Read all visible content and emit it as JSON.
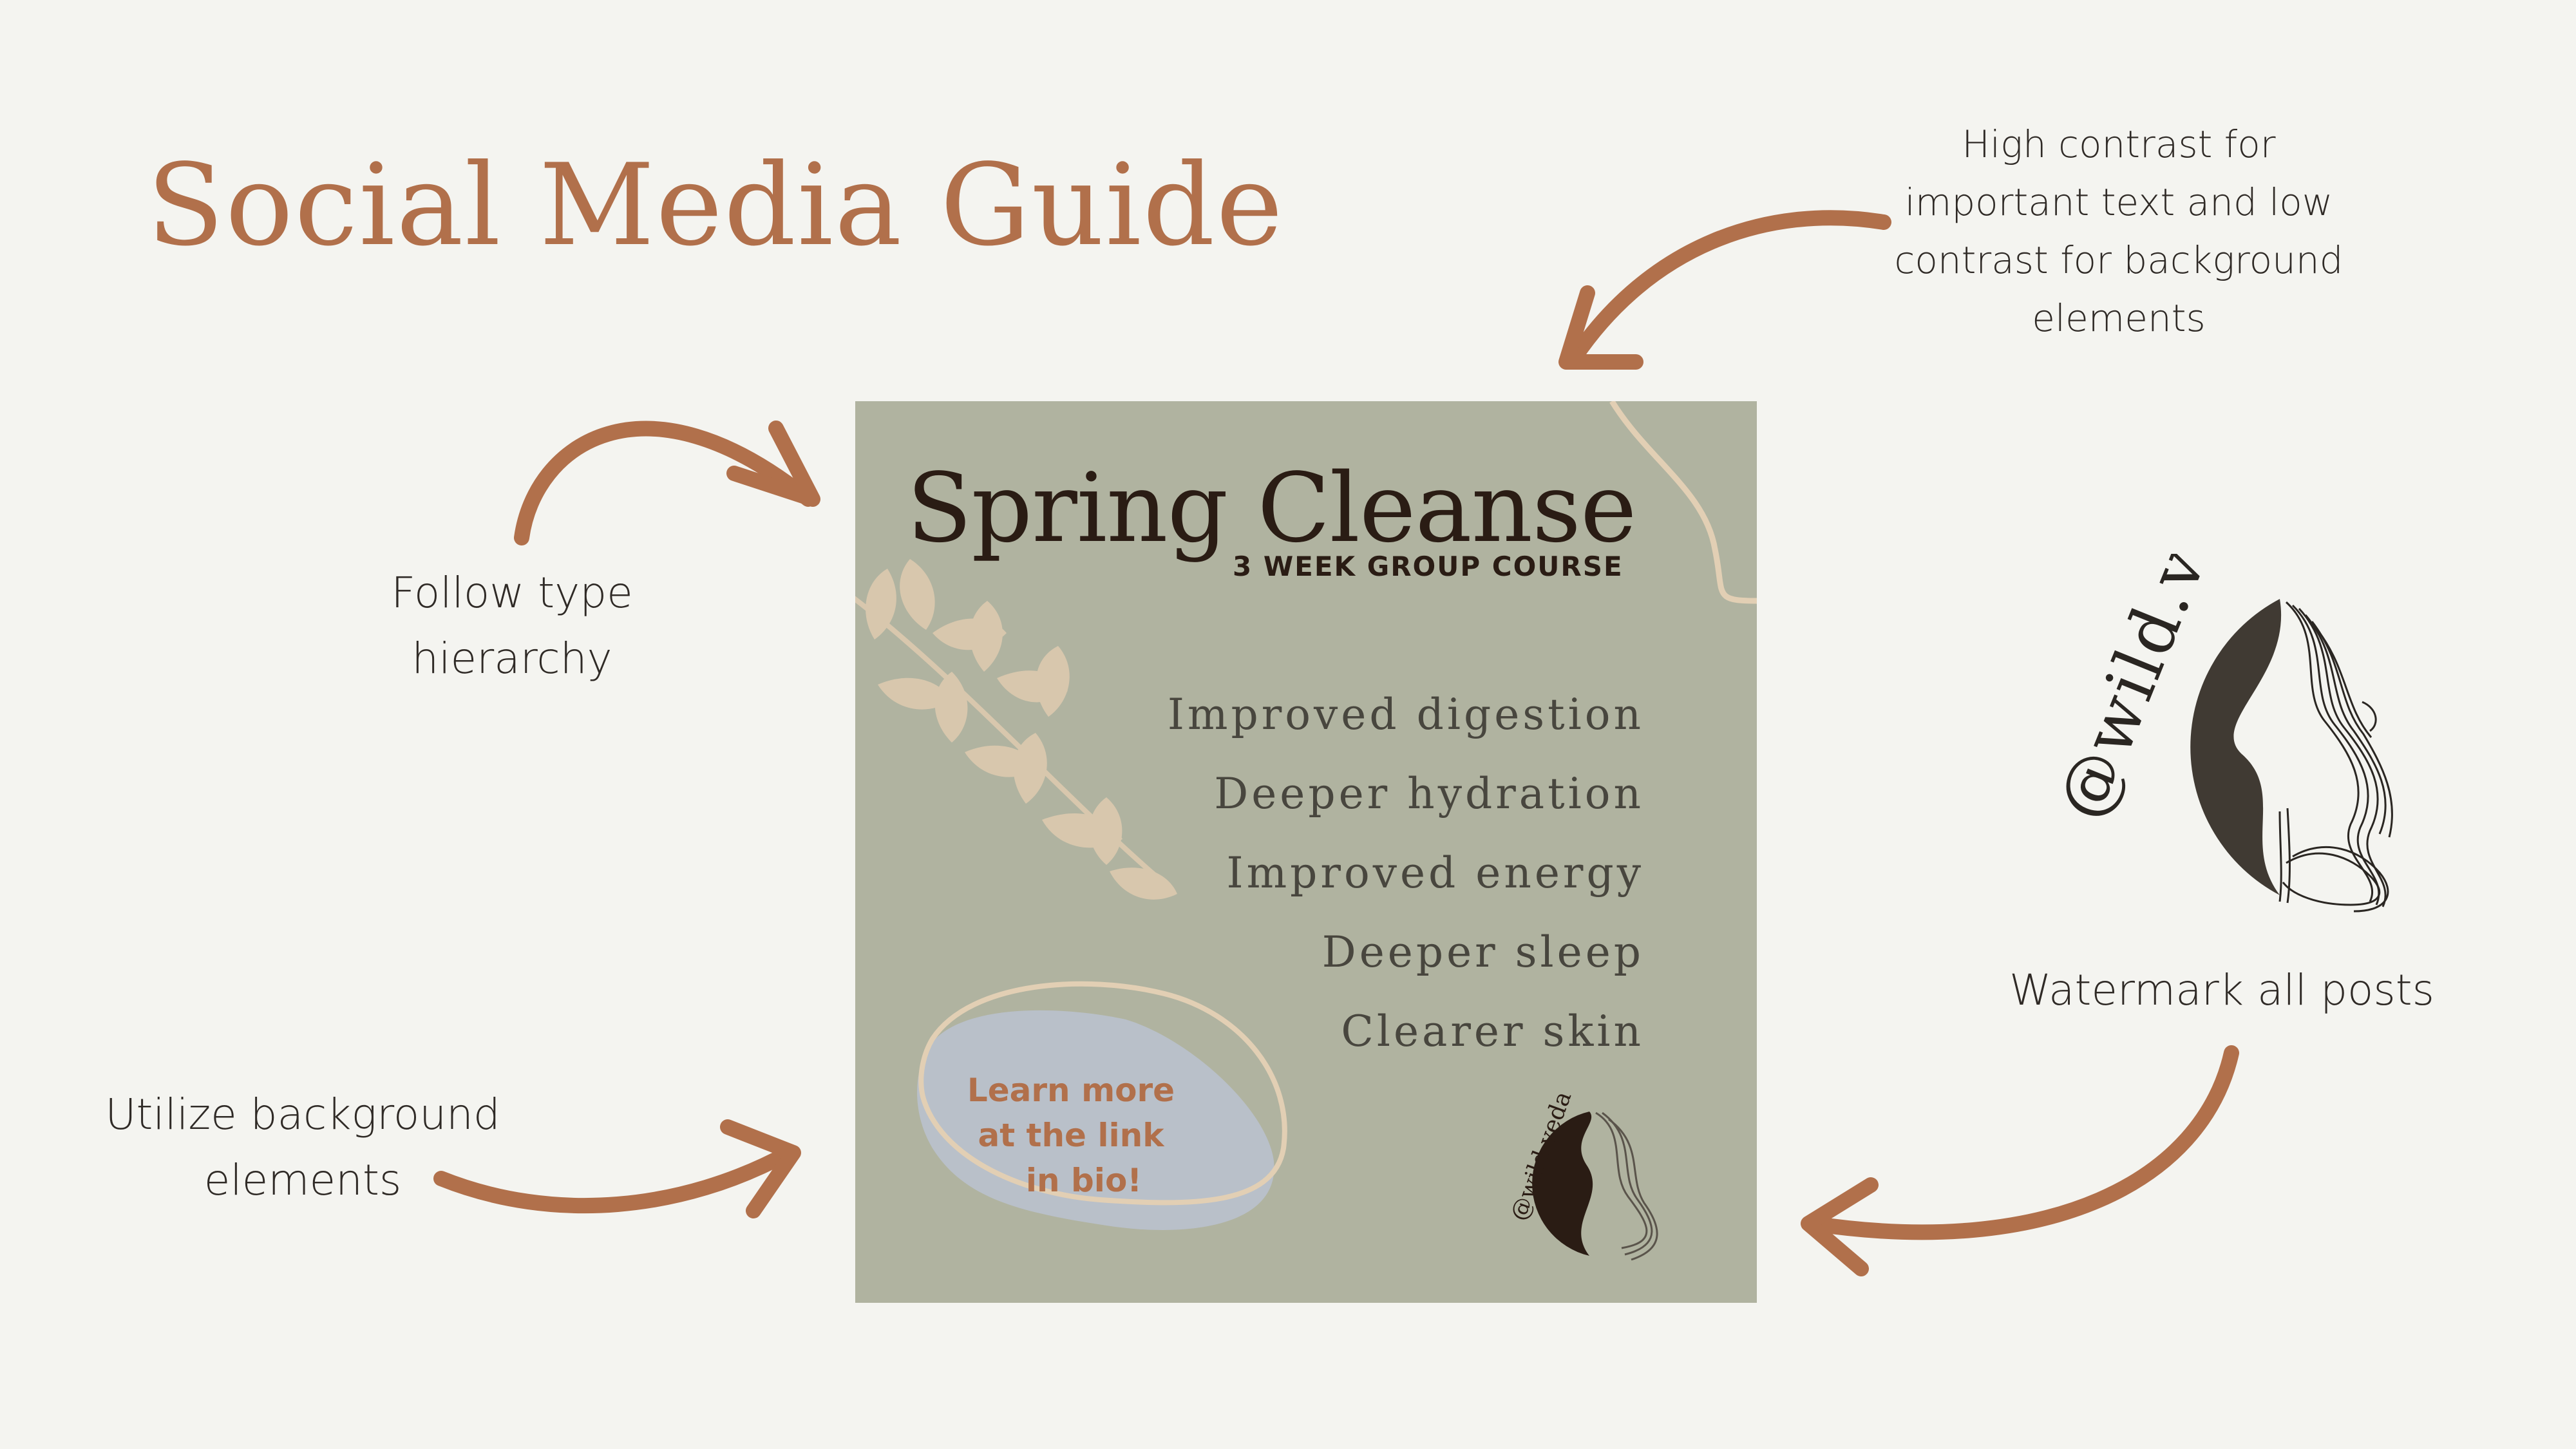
{
  "title": "Social Media Guide",
  "notes": {
    "contrast": "High contrast for important text and low contrast for background elements",
    "hierarchy": "Follow type hierarchy",
    "background": "Utilize background elements",
    "watermark": "Watermark all posts"
  },
  "post": {
    "title": "Spring Cleanse",
    "subtitle": "3 WEEK GROUP COURSE",
    "benefits": [
      "Improved digestion",
      "Deeper hydration",
      "Improved energy",
      "Deeper sleep",
      "Clearer skin"
    ],
    "cta": [
      "Learn more",
      "at the link",
      "in bio!"
    ]
  },
  "watermark_handle": "@wild.veda",
  "colors": {
    "background": "#f4f4f0",
    "accent": "#b1704b",
    "post_background": "#b0b3a0",
    "leaf": "#d8c7ad",
    "blob": "#b9c0c9",
    "dark": "#403a33"
  }
}
